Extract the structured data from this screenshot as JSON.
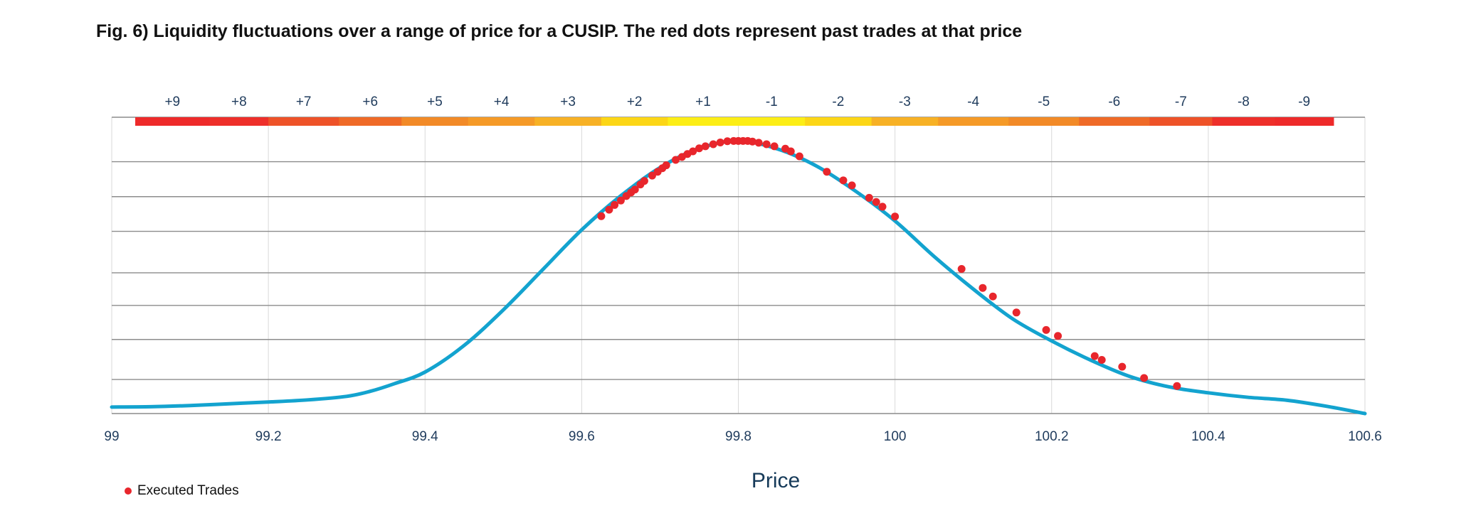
{
  "title": "Fig. 6) Liquidity fluctuations over a range of price for a CUSIP. The red dots represent past trades at that price",
  "chart_data": {
    "type": "line",
    "xlabel": "Price",
    "ylabel": "",
    "xlim": [
      99,
      100.6
    ],
    "ylim": [
      0,
      100
    ],
    "x_ticks": [
      "99",
      "99.2",
      "99.4",
      "99.6",
      "99.8",
      "100",
      "100.2",
      "100.4",
      "100.6"
    ],
    "x_tick_values": [
      99,
      99.2,
      99.4,
      99.6,
      99.8,
      100,
      100.2,
      100.4,
      100.6
    ],
    "gridlines_y": [
      0,
      11.5,
      25,
      36.5,
      47.5,
      61.5,
      73.2,
      85,
      100
    ],
    "series": [
      {
        "color": "#13a3cf",
        "x": [
          99.0,
          99.05,
          99.1,
          99.15,
          99.2,
          99.25,
          99.3,
          99.33,
          99.36,
          99.4,
          99.45,
          99.5,
          99.55,
          99.6,
          99.65,
          99.7,
          99.75,
          99.8,
          99.85,
          99.9,
          99.95,
          100.0,
          100.05,
          100.1,
          100.15,
          100.2,
          100.25,
          100.3,
          100.35,
          100.4,
          100.45,
          100.5,
          100.55,
          100.6
        ],
        "y": [
          2.2,
          2.3,
          2.7,
          3.3,
          3.9,
          4.6,
          5.8,
          7.5,
          10.0,
          14.0,
          23.0,
          35.0,
          48.5,
          62.0,
          73.5,
          83.0,
          89.5,
          92.0,
          89.3,
          83.5,
          75.0,
          65.0,
          53.0,
          42.0,
          32.0,
          24.5,
          18.0,
          12.5,
          9.0,
          7.0,
          5.5,
          4.5,
          2.5,
          0.0
        ]
      }
    ],
    "executed_trades": {
      "name": "Executed Trades",
      "color": "#e8262c",
      "x": [
        99.625,
        99.635,
        99.642,
        99.65,
        99.657,
        99.663,
        99.668,
        99.675,
        99.68,
        99.69,
        99.697,
        99.703,
        99.708,
        99.72,
        99.728,
        99.735,
        99.742,
        99.75,
        99.758,
        99.768,
        99.777,
        99.786,
        99.794,
        99.8,
        99.806,
        99.812,
        99.818,
        99.826,
        99.836,
        99.846,
        99.86,
        99.867,
        99.878,
        99.913,
        99.934,
        99.945,
        99.967,
        99.976,
        99.984,
        100.0,
        100.085,
        100.112,
        100.125,
        100.155,
        100.193,
        100.208,
        100.255,
        100.264,
        100.29,
        100.318,
        100.36
      ],
      "y": [
        66.6,
        68.8,
        70.4,
        71.9,
        73.4,
        74.6,
        75.6,
        77.3,
        78.5,
        80.3,
        81.6,
        82.8,
        83.8,
        85.6,
        86.6,
        87.6,
        88.5,
        89.5,
        90.2,
        90.9,
        91.5,
        91.9,
        92.0,
        92.0,
        92.0,
        92.0,
        91.8,
        91.4,
        90.9,
        90.2,
        89.4,
        88.5,
        86.8,
        81.6,
        78.7,
        77.0,
        72.8,
        71.4,
        69.8,
        66.5,
        48.8,
        42.4,
        39.5,
        34.1,
        28.2,
        26.2,
        19.4,
        18.1,
        15.8,
        12.0,
        9.3
      ]
    },
    "liquidity_bands": {
      "labels": [
        "+9",
        "+8",
        "+7",
        "+6",
        "+5",
        "+4",
        "+3",
        "+2",
        "+1",
        "-1",
        "-2",
        "-3",
        "-4",
        "-5",
        "-6",
        "-7",
        "-8",
        "-9"
      ],
      "colors": [
        "#ee2a2a",
        "#ee2f2a",
        "#ee5228",
        "#ef6a27",
        "#f28a27",
        "#f59a27",
        "#f7b125",
        "#fcd616",
        "#fcee16",
        "#fcee16",
        "#fcd616",
        "#f7b125",
        "#f59a27",
        "#f28a27",
        "#ef6a27",
        "#ee5228",
        "#ee2f2a",
        "#ee2a2a"
      ],
      "x_start": [
        99.03,
        99.125,
        99.2,
        99.29,
        99.37,
        99.455,
        99.54,
        99.625,
        99.71,
        99.8,
        99.885,
        99.97,
        100.055,
        100.145,
        100.235,
        100.325,
        100.405,
        100.485
      ],
      "x_end": [
        99.125,
        99.2,
        99.29,
        99.37,
        99.455,
        99.54,
        99.625,
        99.71,
        99.8,
        99.885,
        99.97,
        100.055,
        100.145,
        100.235,
        100.325,
        100.405,
        100.485,
        100.56
      ]
    },
    "legend": "bottom-left",
    "grid": true
  }
}
